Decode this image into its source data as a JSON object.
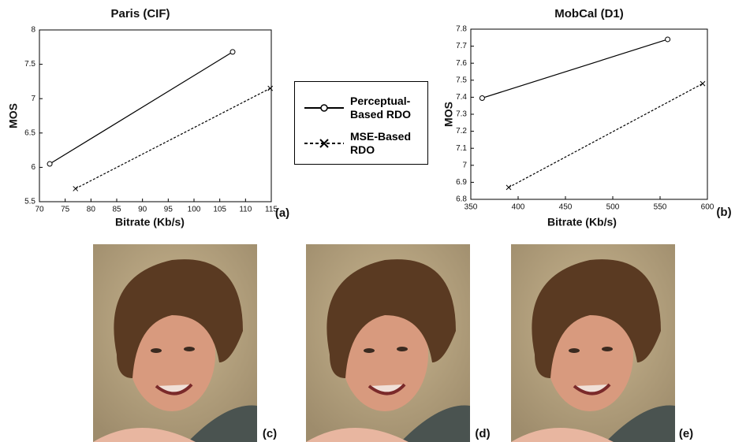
{
  "chart_data": [
    {
      "type": "line",
      "title": "Paris (CIF)",
      "x_label": "Bitrate (Kb/s)",
      "y_label": "MOS",
      "panel_label": "(a)",
      "xlim": [
        70,
        115
      ],
      "xticks": [
        70,
        75,
        80,
        85,
        90,
        95,
        100,
        105,
        110,
        115
      ],
      "ylim": [
        5.5,
        8
      ],
      "yticks": [
        5.5,
        6,
        6.5,
        7,
        7.5,
        8
      ],
      "series": [
        {
          "name": "Perceptual-Based RDO",
          "color": "#000000",
          "marker": "circle",
          "dash": false,
          "x": [
            72,
            107.5
          ],
          "values": [
            6.05,
            7.68
          ]
        },
        {
          "name": "MSE-Based RDO",
          "color": "#000000",
          "marker": "x",
          "dash": true,
          "x": [
            77,
            114.8
          ],
          "values": [
            5.69,
            7.15
          ]
        }
      ]
    },
    {
      "type": "line",
      "title": "MobCal (D1)",
      "x_label": "Bitrate (Kb/s)",
      "y_label": "MOS",
      "panel_label": "(b)",
      "xlim": [
        350,
        600
      ],
      "xticks": [
        350,
        400,
        450,
        500,
        550,
        600
      ],
      "ylim": [
        6.8,
        7.8
      ],
      "yticks": [
        6.8,
        6.9,
        7,
        7.1,
        7.2,
        7.3,
        7.4,
        7.5,
        7.6,
        7.7,
        7.8
      ],
      "series": [
        {
          "color": "#000000",
          "marker": "circle",
          "dash": false,
          "x": [
            362,
            558
          ],
          "values": [
            7.395,
            7.74
          ]
        },
        {
          "color": "#000000",
          "marker": "x",
          "dash": true,
          "x": [
            390,
            595
          ],
          "values": [
            6.87,
            7.48
          ]
        }
      ]
    }
  ],
  "images": {
    "labels": [
      "(c)",
      "(d)",
      "(e)"
    ]
  }
}
